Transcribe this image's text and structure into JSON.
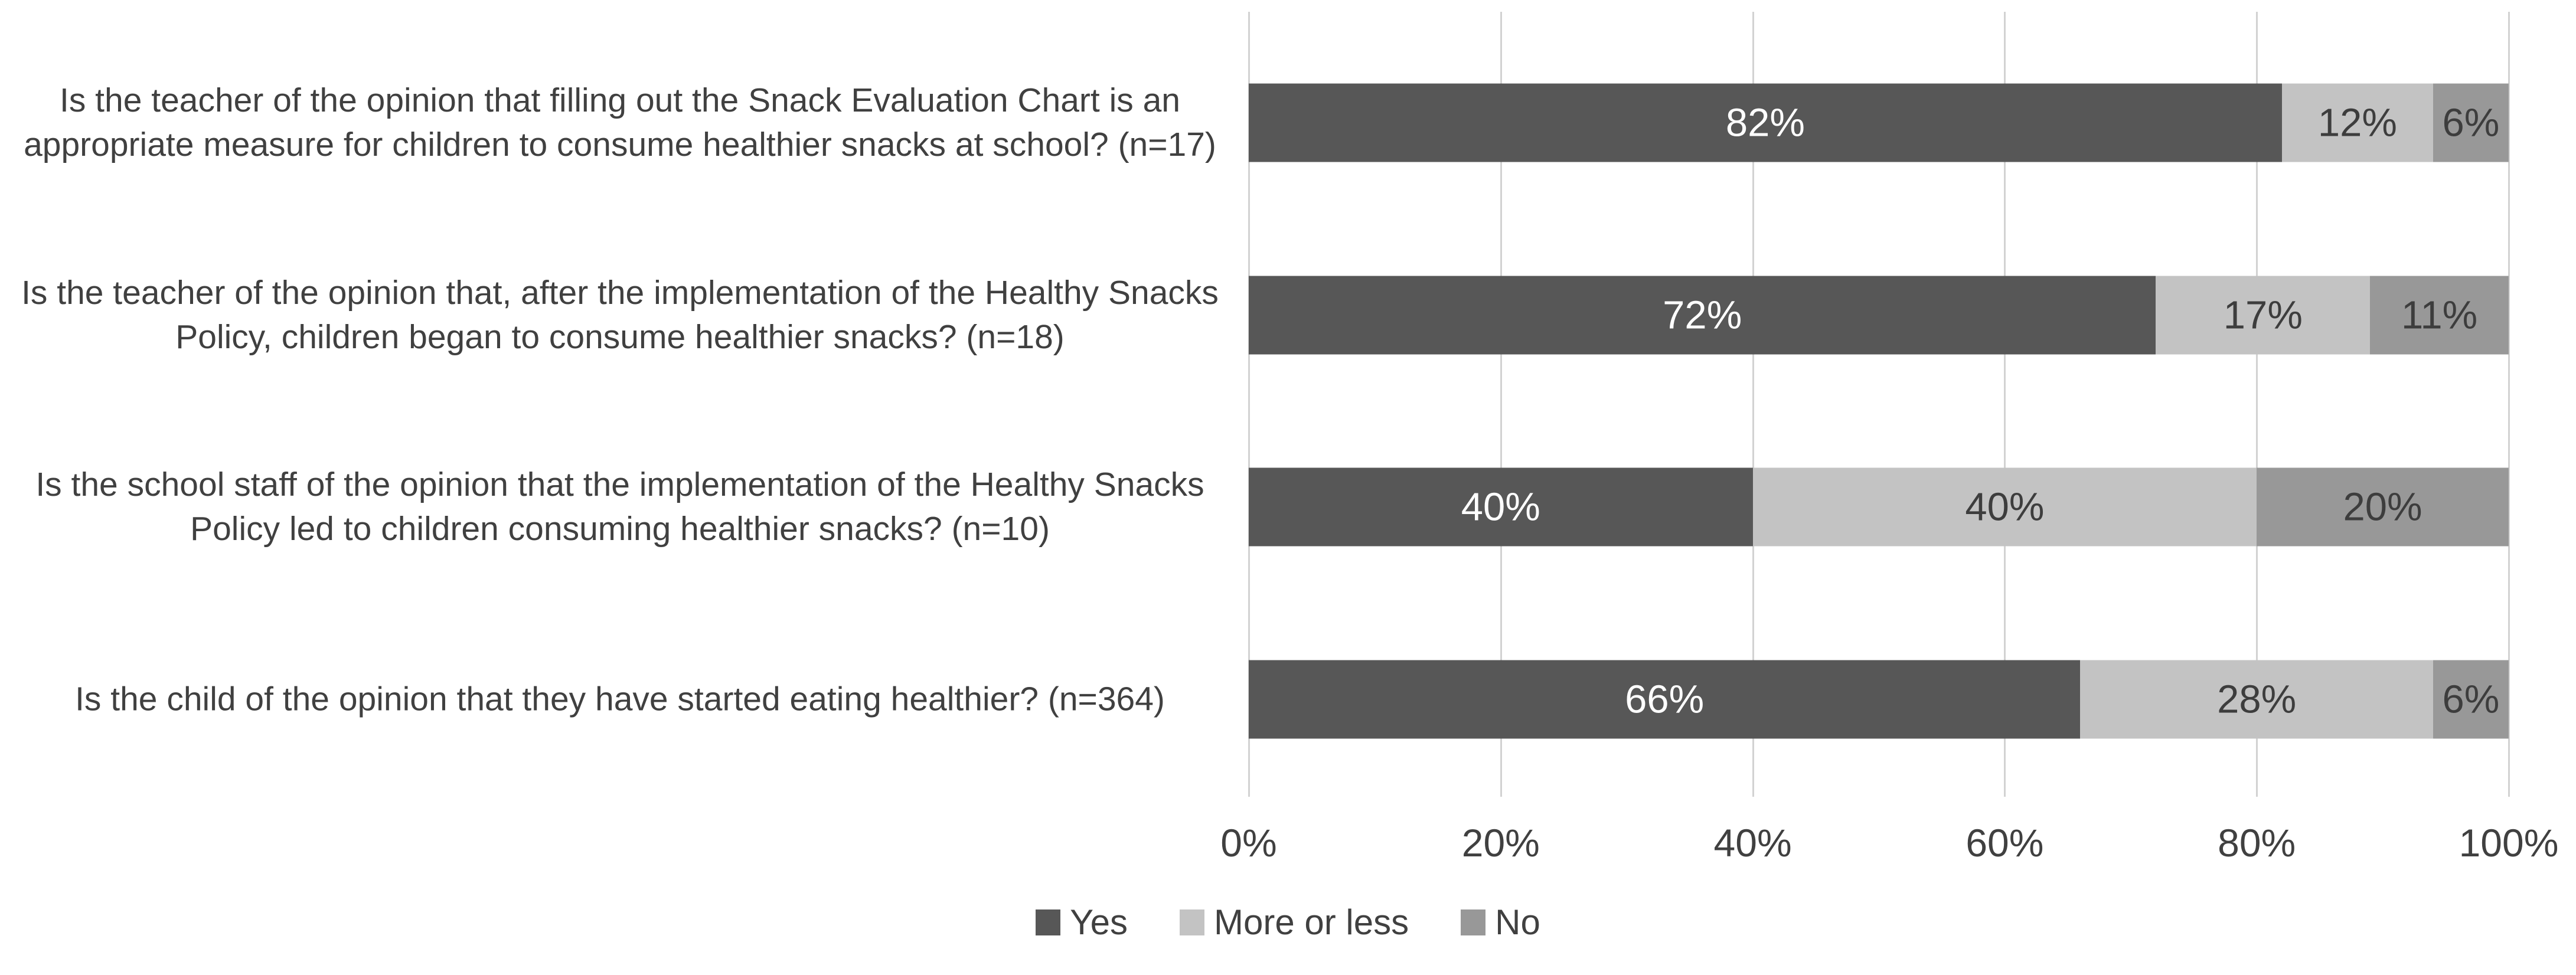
{
  "chart_data": {
    "type": "bar",
    "orientation": "horizontal",
    "stacked": true,
    "title": "",
    "xlabel": "",
    "ylabel": "",
    "xlim": [
      0,
      100
    ],
    "grid": true,
    "legend_position": "bottom",
    "value_suffix": "%",
    "categories": [
      "Is the teacher of the opinion that filling out the Snack Evaluation Chart is an appropriate measure for children to consume healthier snacks at school? (n=17)",
      "Is the teacher of the opinion that, after the implementation of the Healthy Snacks Policy, children began to consume healthier snacks? (n=18)",
      "Is the school staff of the opinion that the implementation of the Healthy Snacks Policy led to children consuming healthier snacks? (n=10)",
      "Is the child of the opinion that they have started eating healthier? (n=364)"
    ],
    "series": [
      {
        "name": "Yes",
        "color": "#575757",
        "label_color": "#ffffff",
        "values": [
          82,
          72,
          40,
          66
        ]
      },
      {
        "name": "More or less",
        "color": "#c3c3c3",
        "label_color": "#3d3d3d",
        "values": [
          12,
          17,
          40,
          28
        ]
      },
      {
        "name": "No",
        "color": "#989898",
        "label_color": "#3d3d3d",
        "values": [
          6,
          11,
          20,
          6
        ]
      }
    ],
    "x_ticks": [
      "0%",
      "20%",
      "40%",
      "60%",
      "80%",
      "100%"
    ],
    "data_labels": [
      [
        "82%",
        "12%",
        "6%"
      ],
      [
        "72%",
        "17%",
        "11%"
      ],
      [
        "40%",
        "40%",
        "20%"
      ],
      [
        "66%",
        "28%",
        "6%"
      ]
    ]
  },
  "colors": {
    "background": "#ffffff",
    "gridline": "#d2d2d2",
    "axis_text": "#404040",
    "category_text": "#404040"
  }
}
